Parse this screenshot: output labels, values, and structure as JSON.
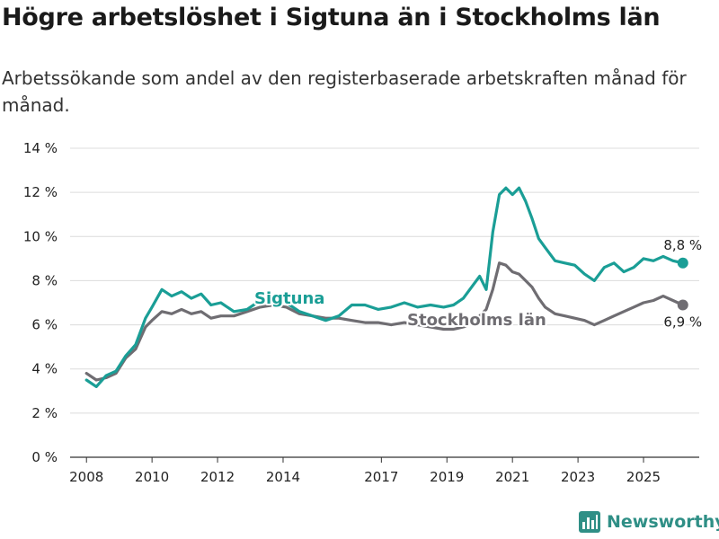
{
  "header": {
    "title": "Högre arbetslöshet i Sigtuna än i Stockholms län",
    "subtitle": "Arbetssökande som andel av den registerbaserade arbetskraften månad för månad."
  },
  "brand": {
    "name": "Newsworthy",
    "icon": "bar-chart-logo-icon",
    "color": "#2f8f86"
  },
  "chart_data": {
    "type": "line",
    "title": "Högre arbetslöshet i Sigtuna än i Stockholms län",
    "xlabel": "",
    "ylabel": "",
    "ylim": [
      0,
      14
    ],
    "xlim": [
      2007.5,
      2026.7
    ],
    "grid": true,
    "y_ticks": [
      0,
      2,
      4,
      6,
      8,
      10,
      12,
      14
    ],
    "y_tick_labels": [
      "0 %",
      "2 %",
      "4 %",
      "6 %",
      "8 %",
      "10 %",
      "12 %",
      "14 %"
    ],
    "x_ticks": [
      2008,
      2010,
      2012,
      2014,
      2017,
      2019,
      2021,
      2023,
      2025
    ],
    "x_tick_labels": [
      "2008",
      "2010",
      "2012",
      "2014",
      "2017",
      "2019",
      "2021",
      "2023",
      "2025"
    ],
    "series": [
      {
        "name": "Sigtuna",
        "label": "Sigtuna",
        "color": "#1a9e96",
        "end_label": "8,8 %",
        "x": [
          2008.0,
          2008.3,
          2008.6,
          2008.9,
          2009.2,
          2009.5,
          2009.8,
          2010.0,
          2010.3,
          2010.6,
          2010.9,
          2011.2,
          2011.5,
          2011.8,
          2012.1,
          2012.5,
          2012.9,
          2013.3,
          2013.7,
          2014.1,
          2014.5,
          2014.9,
          2015.3,
          2015.7,
          2016.1,
          2016.5,
          2016.9,
          2017.3,
          2017.7,
          2018.1,
          2018.5,
          2018.9,
          2019.2,
          2019.5,
          2019.8,
          2020.0,
          2020.2,
          2020.4,
          2020.6,
          2020.8,
          2021.0,
          2021.2,
          2021.4,
          2021.6,
          2021.8,
          2022.0,
          2022.3,
          2022.6,
          2022.9,
          2023.2,
          2023.5,
          2023.8,
          2024.1,
          2024.4,
          2024.7,
          2025.0,
          2025.3,
          2025.6,
          2025.9,
          2026.2
        ],
        "values": [
          3.5,
          3.2,
          3.7,
          3.9,
          4.6,
          5.1,
          6.3,
          6.8,
          7.6,
          7.3,
          7.5,
          7.2,
          7.4,
          6.9,
          7.0,
          6.6,
          6.7,
          7.1,
          7.3,
          7.0,
          6.6,
          6.4,
          6.2,
          6.4,
          6.9,
          6.9,
          6.7,
          6.8,
          7.0,
          6.8,
          6.9,
          6.8,
          6.9,
          7.2,
          7.8,
          8.2,
          7.6,
          10.2,
          11.9,
          12.2,
          11.9,
          12.2,
          11.6,
          10.8,
          9.9,
          9.5,
          8.9,
          8.8,
          8.7,
          8.3,
          8.0,
          8.6,
          8.8,
          8.4,
          8.6,
          9.0,
          8.9,
          9.1,
          8.9,
          8.8
        ]
      },
      {
        "name": "Stockholms län",
        "label": "Stockholms län",
        "color": "#6f6d72",
        "end_label": "6,9 %",
        "x": [
          2008.0,
          2008.3,
          2008.6,
          2008.9,
          2009.2,
          2009.5,
          2009.8,
          2010.0,
          2010.3,
          2010.6,
          2010.9,
          2011.2,
          2011.5,
          2011.8,
          2012.1,
          2012.5,
          2012.9,
          2013.3,
          2013.7,
          2014.1,
          2014.5,
          2014.9,
          2015.3,
          2015.7,
          2016.1,
          2016.5,
          2016.9,
          2017.3,
          2017.7,
          2018.1,
          2018.5,
          2018.9,
          2019.2,
          2019.5,
          2019.8,
          2020.0,
          2020.2,
          2020.4,
          2020.6,
          2020.8,
          2021.0,
          2021.2,
          2021.4,
          2021.6,
          2021.8,
          2022.0,
          2022.3,
          2022.6,
          2022.9,
          2023.2,
          2023.5,
          2023.8,
          2024.1,
          2024.4,
          2024.7,
          2025.0,
          2025.3,
          2025.6,
          2025.9,
          2026.2
        ],
        "values": [
          3.8,
          3.5,
          3.6,
          3.8,
          4.5,
          4.9,
          5.9,
          6.2,
          6.6,
          6.5,
          6.7,
          6.5,
          6.6,
          6.3,
          6.4,
          6.4,
          6.6,
          6.8,
          6.9,
          6.8,
          6.5,
          6.4,
          6.3,
          6.3,
          6.2,
          6.1,
          6.1,
          6.0,
          6.1,
          6.0,
          5.9,
          5.8,
          5.8,
          5.9,
          6.1,
          6.4,
          6.7,
          7.6,
          8.8,
          8.7,
          8.4,
          8.3,
          8.0,
          7.7,
          7.2,
          6.8,
          6.5,
          6.4,
          6.3,
          6.2,
          6.0,
          6.2,
          6.4,
          6.6,
          6.8,
          7.0,
          7.1,
          7.3,
          7.1,
          6.9
        ]
      }
    ]
  }
}
